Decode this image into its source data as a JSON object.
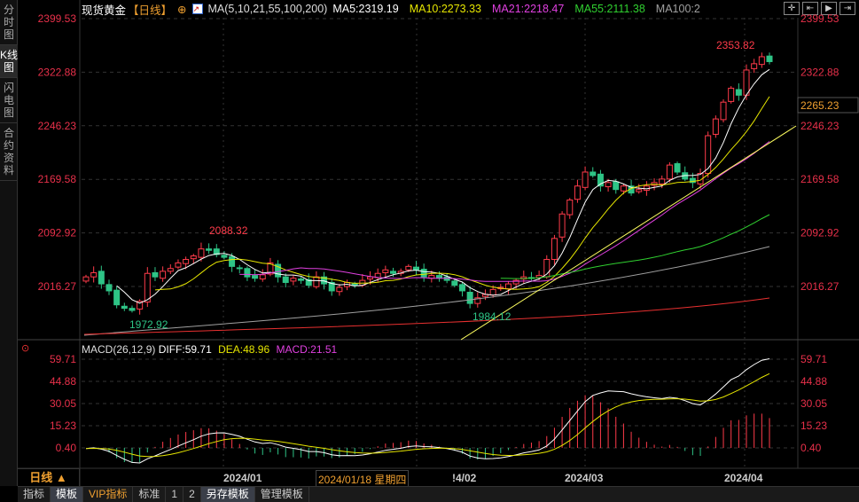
{
  "side_tabs": [
    "分时图",
    "K线图",
    "闪电图",
    "合约资料"
  ],
  "header": {
    "title": "现货黄金",
    "period": "【日线】",
    "ma_label": "MA(5,10,21,55,100,200)",
    "ma5": "MA5:2319.19",
    "ma10": "MA10:2273.33",
    "ma21": "MA21:2218.47",
    "ma55": "MA55:2111.38",
    "ma100": "MA100:2"
  },
  "macd_header": {
    "name": "MACD(26,12,9)",
    "diff": "DIFF:59.71",
    "dea": "DEA:48.96",
    "macd": "MACD:21.51"
  },
  "price_axis": [
    "2399.53",
    "2322.88",
    "2246.23",
    "2169.58",
    "2092.92",
    "2016.27"
  ],
  "price_axis_values": [
    2399.53,
    2322.88,
    2246.23,
    2169.58,
    2092.92,
    2016.27
  ],
  "current_price_tag": "2265.23",
  "macd_axis": [
    "59.71",
    "44.88",
    "30.05",
    "15.23",
    "0.40"
  ],
  "macd_axis_values": [
    59.71,
    44.88,
    30.05,
    15.23,
    0.4
  ],
  "annotations": {
    "high": "2353.82",
    "dec_high": "2088.32",
    "dec_low": "1972.92",
    "feb_low": "1984.12"
  },
  "date_axis": {
    "period_button": "日线 ▲",
    "labels": [
      "2024/01",
      "2024/03",
      "2024/04"
    ],
    "cursor_date": "2024/01/18 星期四",
    "partial": "!4/02"
  },
  "bottom_tabs": [
    "指标",
    "模板",
    "VIP指标",
    "标准",
    "1",
    "2",
    "另存模板",
    "管理模板"
  ],
  "colors": {
    "up": "#ff3b4a",
    "down": "#2ec486",
    "ma5": "#ffffff",
    "ma10": "#e6e600",
    "ma21": "#e040e0",
    "ma55": "#30d030",
    "ma100": "#a0a0a0",
    "ma200": "#e83030",
    "orange": "#f0a030"
  },
  "chart_data": {
    "type": "candlestick",
    "closes": [
      2030,
      2036,
      2020,
      2010,
      1990,
      1985,
      1982,
      1995,
      2035,
      2030,
      2038,
      2042,
      2050,
      2055,
      2060,
      2070,
      2068,
      2062,
      2058,
      2045,
      2042,
      2030,
      2028,
      2033,
      2050,
      2030,
      2022,
      2028,
      2025,
      2018,
      2030,
      2020,
      2010,
      2015,
      2022,
      2018,
      2025,
      2030,
      2035,
      2040,
      2035,
      2038,
      2045,
      2040,
      2030,
      2032,
      2028,
      2025,
      2018,
      2010,
      1992,
      2000,
      2005,
      2012,
      2015,
      2020,
      2025,
      2030,
      2028,
      2032,
      2055,
      2085,
      2120,
      2140,
      2160,
      2180,
      2175,
      2160,
      2165,
      2155,
      2160,
      2150,
      2155,
      2160,
      2165,
      2170,
      2190,
      2180,
      2170,
      2165,
      2178,
      2232,
      2256,
      2280,
      2300,
      2290,
      2326,
      2335,
      2345,
      2338
    ],
    "ylim": [
      2016.27,
      2399.53
    ]
  }
}
